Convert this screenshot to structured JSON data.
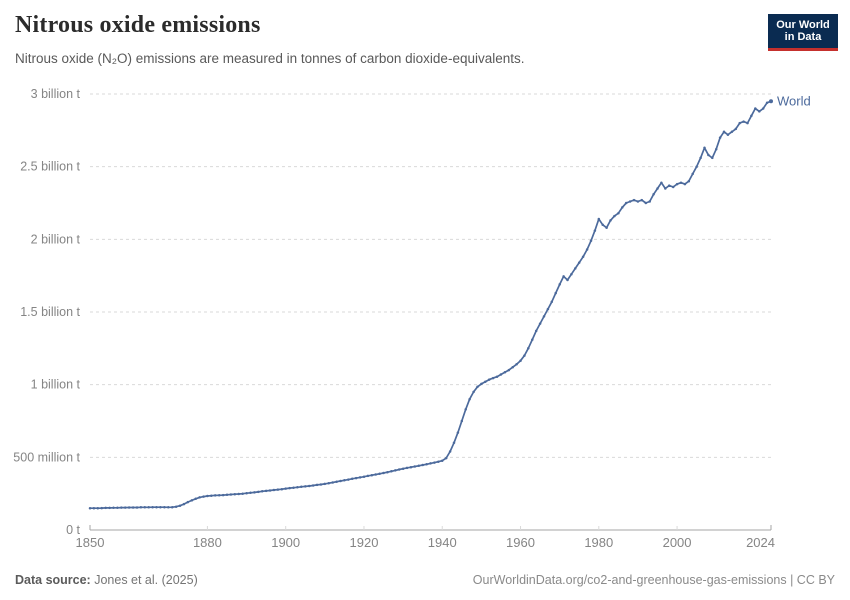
{
  "header": {
    "title": "Nitrous oxide emissions",
    "subtitle": "Nitrous oxide (N₂O) emissions are measured in tonnes of carbon dioxide-equivalents."
  },
  "logo": {
    "line1": "Our World",
    "line2": "in Data"
  },
  "footer": {
    "source_label": "Data source:",
    "source_value": " Jones et al. (2025)",
    "right_text": "OurWorldinData.org/co2-and-greenhouse-gas-emissions | CC BY"
  },
  "colors": {
    "line": "#4c6a9c",
    "series_label": "#4c6a9c",
    "grid": "#dadada",
    "axis": "#a5a5a5",
    "tick_label": "#858585",
    "title": "#2b2b2b",
    "subtitle": "#595959",
    "logo_bg": "#0a2b51",
    "logo_stripe": "#c5302d"
  },
  "chart_data": {
    "type": "line",
    "title": "Nitrous oxide emissions",
    "values_unit": "million tonnes of CO₂-equivalents",
    "xlabel": "",
    "ylabel": "",
    "xlim": [
      1850,
      2024
    ],
    "ylim": [
      0,
      3000
    ],
    "grid": "dashed-horizontal",
    "legend_position": "end-of-line",
    "x_ticks": [
      1850,
      1880,
      1900,
      1920,
      1940,
      1960,
      1980,
      2000,
      2024
    ],
    "y_ticks": [
      {
        "label": "0 t",
        "value": 0
      },
      {
        "label": "500 million t",
        "value": 500
      },
      {
        "label": "1 billion t",
        "value": 1000
      },
      {
        "label": "1.5 billion t",
        "value": 1500
      },
      {
        "label": "2 billion t",
        "value": 2000
      },
      {
        "label": "2.5 billion t",
        "value": 2500
      },
      {
        "label": "3 billion t",
        "value": 3000
      }
    ],
    "series": [
      {
        "name": "World",
        "start_year": 1850,
        "end_year": 2024,
        "values": [
          150,
          150,
          150,
          151,
          152,
          152,
          153,
          153,
          154,
          154,
          155,
          155,
          155,
          156,
          156,
          156,
          157,
          157,
          157,
          157,
          156,
          157,
          160,
          167,
          178,
          192,
          204,
          215,
          224,
          230,
          234,
          236,
          238,
          239,
          240,
          242,
          244,
          246,
          248,
          250,
          253,
          256,
          259,
          262,
          266,
          269,
          272,
          275,
          278,
          281,
          285,
          288,
          291,
          294,
          297,
          300,
          303,
          306,
          310,
          313,
          317,
          322,
          327,
          332,
          337,
          342,
          347,
          352,
          357,
          362,
          367,
          372,
          377,
          382,
          387,
          392,
          398,
          404,
          410,
          416,
          422,
          427,
          432,
          437,
          442,
          447,
          452,
          458,
          464,
          470,
          477,
          495,
          540,
          600,
          670,
          750,
          830,
          900,
          950,
          985,
          1005,
          1020,
          1035,
          1045,
          1055,
          1070,
          1085,
          1100,
          1120,
          1140,
          1165,
          1200,
          1250,
          1310,
          1370,
          1420,
          1470,
          1520,
          1570,
          1630,
          1690,
          1745,
          1720,
          1760,
          1800,
          1840,
          1880,
          1930,
          1990,
          2060,
          2140,
          2100,
          2080,
          2130,
          2160,
          2180,
          2220,
          2250,
          2260,
          2270,
          2260,
          2270,
          2250,
          2260,
          2310,
          2350,
          2390,
          2350,
          2370,
          2360,
          2380,
          2390,
          2380,
          2400,
          2450,
          2500,
          2560,
          2630,
          2580,
          2560,
          2620,
          2700,
          2740,
          2720,
          2740,
          2760,
          2800,
          2810,
          2800,
          2850,
          2900,
          2880,
          2900,
          2940,
          2950
        ]
      }
    ]
  }
}
